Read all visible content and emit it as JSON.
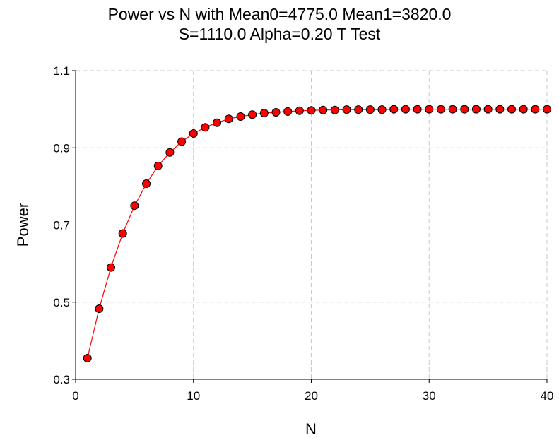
{
  "chart_data": {
    "type": "line",
    "title_line1": "Power vs N with Mean0=4775.0 Mean1=3820.0",
    "title_line2": "S=1110.0 Alpha=0.20 T Test",
    "xlabel": "N",
    "ylabel": "Power",
    "xlim": [
      0,
      40
    ],
    "ylim": [
      0.3,
      1.1
    ],
    "xticks": [
      0,
      10,
      20,
      30,
      40
    ],
    "xtick_labels": [
      "0",
      "10",
      "20",
      "30",
      "40"
    ],
    "yticks": [
      0.3,
      0.5,
      0.7,
      0.9,
      1.1
    ],
    "ytick_labels": [
      "0.3",
      "0.5",
      "0.7",
      "0.9",
      "1.1"
    ],
    "grid": true,
    "series": [
      {
        "color": "#ff0000",
        "marker": "circle",
        "x": [
          1,
          2,
          3,
          4,
          5,
          6,
          7,
          8,
          9,
          10,
          11,
          12,
          13,
          14,
          15,
          16,
          17,
          18,
          19,
          20,
          21,
          22,
          23,
          24,
          25,
          26,
          27,
          28,
          29,
          30,
          31,
          32,
          33,
          34,
          35,
          36,
          37,
          38,
          39,
          40
        ],
        "values": [
          0.355,
          0.483,
          0.59,
          0.678,
          0.75,
          0.807,
          0.853,
          0.888,
          0.916,
          0.937,
          0.953,
          0.965,
          0.975,
          0.981,
          0.986,
          0.99,
          0.992,
          0.994,
          0.996,
          0.997,
          0.998,
          0.998,
          0.999,
          0.999,
          0.999,
          0.999,
          1.0,
          1.0,
          1.0,
          1.0,
          1.0,
          1.0,
          1.0,
          1.0,
          1.0,
          1.0,
          1.0,
          1.0,
          1.0,
          1.0
        ]
      }
    ]
  }
}
